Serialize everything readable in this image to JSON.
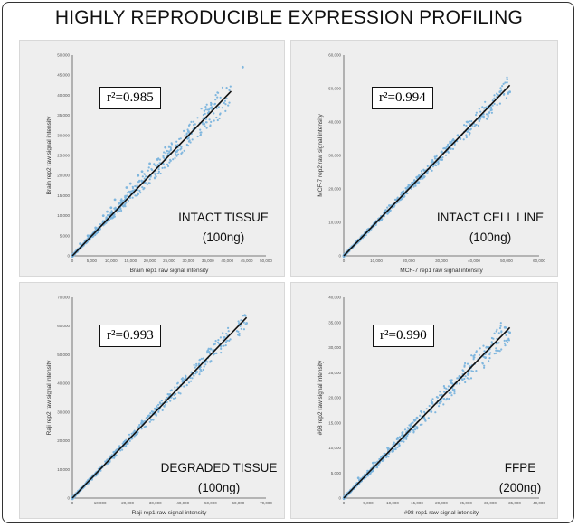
{
  "title": "HIGHLY REPRODUCIBLE EXPRESSION PROFILING",
  "colors": {
    "point": "#7fb6de",
    "line": "#111111",
    "panel_bg": "#eeeeee"
  },
  "chart_data": [
    {
      "type": "scatter",
      "r2": "r²=0.985",
      "condition": "INTACT TISSUE",
      "amount": "(100ng)",
      "xlabel": "Brain rep1 raw signal intensity",
      "ylabel": "Brain rep2 raw signal intensity",
      "xlim": [
        0,
        50000
      ],
      "ylim": [
        0,
        50000
      ],
      "xticks": [
        "0",
        "5,000",
        "10,000",
        "15,000",
        "20,000",
        "25,000",
        "30,000",
        "35,000",
        "40,000",
        "45,000",
        "50,000"
      ],
      "yticks": [
        "0",
        "5,000",
        "10,000",
        "15,000",
        "20,000",
        "25,000",
        "30,000",
        "35,000",
        "40,000",
        "45,000",
        "50,000"
      ],
      "fit": [
        [
          0,
          0
        ],
        [
          41000,
          41000
        ]
      ],
      "spread": 0.1,
      "points": [
        [
          44000,
          47000
        ],
        [
          36000,
          37000
        ],
        [
          30000,
          31000
        ],
        [
          27000,
          26000
        ],
        [
          24000,
          27000
        ],
        [
          20000,
          23000
        ],
        [
          17000,
          20000
        ],
        [
          14000,
          17000
        ],
        [
          12000,
          13000
        ],
        [
          10000,
          12000
        ],
        [
          8000,
          10000
        ],
        [
          6000,
          7000
        ],
        [
          4000,
          5000
        ],
        [
          2000,
          3000
        ],
        [
          1000,
          1000
        ],
        [
          15000,
          18000
        ],
        [
          18000,
          21000
        ],
        [
          22000,
          24000
        ],
        [
          9000,
          11000
        ],
        [
          11000,
          14000
        ]
      ]
    },
    {
      "type": "scatter",
      "r2": "r²=0.994",
      "condition": "INTACT CELL LINE",
      "amount": "(100ng)",
      "xlabel": "MCF-7 rep1 raw signal intensity",
      "ylabel": "MCF-7 rep2 raw signal intensity",
      "xlim": [
        0,
        60000
      ],
      "ylim": [
        0,
        60000
      ],
      "xticks": [
        "0",
        "10,000",
        "20,000",
        "30,000",
        "40,000",
        "50,000",
        "60,000"
      ],
      "yticks": [
        "0",
        "10,000",
        "20,000",
        "30,000",
        "40,000",
        "50,000",
        "60,000"
      ],
      "fit": [
        [
          0,
          0
        ],
        [
          51000,
          51000
        ]
      ],
      "spread": 0.06,
      "points": [
        [
          51000,
          49000
        ],
        [
          48000,
          49000
        ],
        [
          44000,
          41000
        ],
        [
          38000,
          40000
        ],
        [
          35000,
          36000
        ],
        [
          30000,
          31000
        ],
        [
          27000,
          28000
        ],
        [
          23000,
          22000
        ],
        [
          18000,
          19000
        ],
        [
          14000,
          15000
        ],
        [
          10000,
          10000
        ],
        [
          6000,
          6000
        ],
        [
          3000,
          3000
        ],
        [
          1000,
          1000
        ]
      ]
    },
    {
      "type": "scatter",
      "r2": "r²=0.993",
      "condition": "DEGRADED TISSUE",
      "amount": "(100ng)",
      "xlabel": "Raji rep1 raw signal intensity",
      "ylabel": "Raji rep2 raw signal intensity",
      "xlim": [
        0,
        70000
      ],
      "ylim": [
        0,
        70000
      ],
      "xticks": [
        "0",
        "10,000",
        "20,000",
        "30,000",
        "40,000",
        "50,000",
        "60,000",
        "70,000"
      ],
      "yticks": [
        "0",
        "10,000",
        "20,000",
        "30,000",
        "40,000",
        "50,000",
        "60,000",
        "70,000"
      ],
      "fit": [
        [
          0,
          0
        ],
        [
          63000,
          63000
        ]
      ],
      "spread": 0.06,
      "points": [
        [
          63000,
          61000
        ],
        [
          60000,
          57000
        ],
        [
          55000,
          56000
        ],
        [
          50000,
          52000
        ],
        [
          45000,
          44000
        ],
        [
          40000,
          41000
        ],
        [
          35000,
          35000
        ],
        [
          30000,
          31000
        ],
        [
          25000,
          26000
        ],
        [
          20000,
          19000
        ],
        [
          15000,
          16000
        ],
        [
          10000,
          10000
        ],
        [
          5000,
          5000
        ],
        [
          1000,
          1000
        ]
      ]
    },
    {
      "type": "scatter",
      "r2": "r²=0.990",
      "condition": "FFPE",
      "amount": "(200ng)",
      "xlabel": "#98 rep1 raw signal intensity",
      "ylabel": "#98 rep2 raw signal intensity",
      "xlim": [
        0,
        40000
      ],
      "ylim": [
        0,
        40000
      ],
      "xticks": [
        "0",
        "5,000",
        "10,000",
        "15,000",
        "20,000",
        "25,000",
        "30,000",
        "35,000",
        "40,000"
      ],
      "yticks": [
        "0",
        "5,000",
        "10,000",
        "15,000",
        "20,000",
        "25,000",
        "30,000",
        "35,000",
        "40,000"
      ],
      "fit": [
        [
          0,
          0
        ],
        [
          34000,
          34000
        ]
      ],
      "spread": 0.09,
      "points": [
        [
          33000,
          34000
        ],
        [
          34000,
          33000
        ],
        [
          29000,
          28000
        ],
        [
          26000,
          26000
        ],
        [
          22000,
          23000
        ],
        [
          18000,
          19000
        ],
        [
          15000,
          16000
        ],
        [
          12000,
          13000
        ],
        [
          9000,
          10000
        ],
        [
          6000,
          7000
        ],
        [
          3000,
          4000
        ],
        [
          1000,
          1000
        ]
      ]
    }
  ]
}
